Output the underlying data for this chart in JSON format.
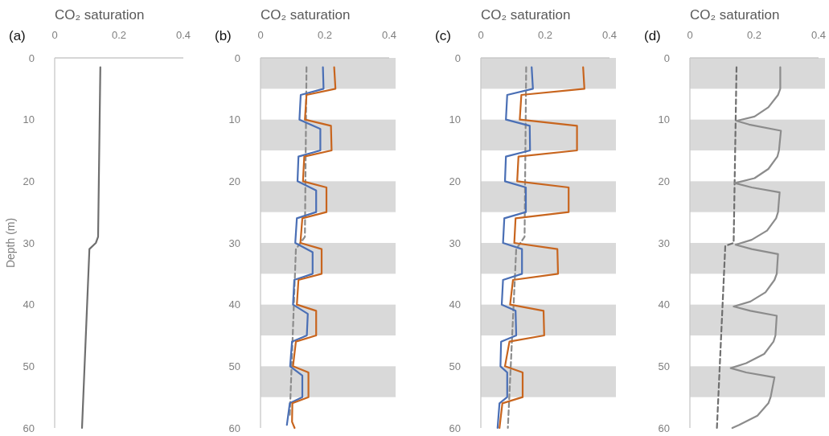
{
  "chart_data": [
    {
      "type": "line",
      "xlabel": "CO₂ saturation",
      "ylabel": "Depth (m)",
      "annotations": [
        "(a)"
      ],
      "xlim": [
        0,
        0.4
      ],
      "xticks": [
        0,
        0.2,
        0.4
      ],
      "ylim": [
        60,
        0
      ],
      "yticks": [
        0,
        10,
        20,
        30,
        40,
        50,
        60
      ],
      "series": [
        {
          "color": "#6f6f6f",
          "x": [
            0.142,
            0.135,
            0.128,
            0.108,
            0.085
          ],
          "values": [
            1.5,
            29,
            30,
            31,
            60
          ]
        }
      ]
    },
    {
      "type": "line",
      "xlabel": "CO₂ saturation",
      "annotations": [
        "(b)"
      ],
      "xlim": [
        0,
        0.4
      ],
      "xticks": [
        0,
        0.2,
        0.4
      ],
      "ylim": [
        60,
        0
      ],
      "yticks": [
        0,
        10,
        20,
        30,
        40,
        50,
        60
      ],
      "bands": [
        {
          "axis": "y",
          "from": 0,
          "to": 5,
          "color": "#d9d9d9"
        },
        {
          "axis": "y",
          "from": 10,
          "to": 15,
          "color": "#d9d9d9"
        },
        {
          "axis": "y",
          "from": 20,
          "to": 25,
          "color": "#d9d9d9"
        },
        {
          "axis": "y",
          "from": 30,
          "to": 35,
          "color": "#d9d9d9"
        },
        {
          "axis": "y",
          "from": 40,
          "to": 45,
          "color": "#d9d9d9"
        },
        {
          "axis": "y",
          "from": 50,
          "to": 55,
          "color": "#d9d9d9"
        }
      ],
      "series": [
        {
          "color": "#8c8c8c",
          "line_style": "dashed",
          "x": [
            0.143,
            0.138,
            0.11,
            0.091
          ],
          "values": [
            1.5,
            29,
            31,
            58
          ]
        },
        {
          "color": "#4a6fb5",
          "x": [
            0.194,
            0.196,
            0.125,
            0.121,
            0.186,
            0.186,
            0.118,
            0.115,
            0.173,
            0.173,
            0.113,
            0.108,
            0.162,
            0.162,
            0.105,
            0.101,
            0.147,
            0.144,
            0.098,
            0.092,
            0.13,
            0.13,
            0.091,
            0.082
          ],
          "values": [
            1.5,
            5,
            6,
            10,
            11.5,
            15,
            16,
            20,
            21.5,
            25,
            26,
            30,
            31.5,
            35,
            36,
            40,
            41.5,
            45,
            46,
            50,
            51.5,
            55,
            56,
            59.5
          ]
        },
        {
          "color": "#c8651e",
          "x": [
            0.229,
            0.233,
            0.143,
            0.138,
            0.219,
            0.221,
            0.136,
            0.132,
            0.205,
            0.205,
            0.13,
            0.124,
            0.19,
            0.19,
            0.118,
            0.113,
            0.173,
            0.173,
            0.11,
            0.101,
            0.149,
            0.149,
            0.099,
            0.098,
            0.106
          ],
          "values": [
            1.5,
            5,
            6,
            10,
            11,
            15,
            16,
            20,
            21,
            25,
            26,
            30,
            31,
            35,
            36,
            40,
            41,
            45,
            46,
            50,
            51,
            55,
            56,
            59,
            60
          ]
        }
      ]
    },
    {
      "type": "line",
      "xlabel": "CO₂ saturation",
      "annotations": [
        "(c)"
      ],
      "xlim": [
        0,
        0.4
      ],
      "xticks": [
        0,
        0.2,
        0.4
      ],
      "ylim": [
        60,
        0
      ],
      "yticks": [
        0,
        10,
        20,
        30,
        40,
        50,
        60
      ],
      "bands": [
        {
          "axis": "y",
          "from": 0,
          "to": 5,
          "color": "#d9d9d9"
        },
        {
          "axis": "y",
          "from": 10,
          "to": 15,
          "color": "#d9d9d9"
        },
        {
          "axis": "y",
          "from": 20,
          "to": 25,
          "color": "#d9d9d9"
        },
        {
          "axis": "y",
          "from": 30,
          "to": 35,
          "color": "#d9d9d9"
        },
        {
          "axis": "y",
          "from": 40,
          "to": 45,
          "color": "#d9d9d9"
        },
        {
          "axis": "y",
          "from": 50,
          "to": 55,
          "color": "#d9d9d9"
        }
      ],
      "series": [
        {
          "color": "#8c8c8c",
          "line_style": "dashed",
          "x": [
            0.141,
            0.136,
            0.11,
            0.084
          ],
          "values": [
            1.5,
            29,
            31,
            60
          ]
        },
        {
          "color": "#4a6fb5",
          "x": [
            0.158,
            0.162,
            0.082,
            0.078,
            0.152,
            0.153,
            0.078,
            0.075,
            0.14,
            0.14,
            0.073,
            0.069,
            0.128,
            0.128,
            0.069,
            0.065,
            0.108,
            0.11,
            0.063,
            0.061,
            0.082,
            0.082,
            0.058,
            0.052
          ],
          "values": [
            1.5,
            5,
            6,
            10,
            11,
            15,
            16,
            20,
            21,
            25,
            26,
            30,
            31,
            35,
            36,
            40,
            41,
            45,
            46,
            50,
            51,
            55,
            56,
            60
          ]
        },
        {
          "color": "#c8651e",
          "x": [
            0.318,
            0.322,
            0.126,
            0.121,
            0.299,
            0.299,
            0.117,
            0.113,
            0.273,
            0.273,
            0.108,
            0.104,
            0.238,
            0.24,
            0.1,
            0.091,
            0.195,
            0.197,
            0.089,
            0.075,
            0.13,
            0.13,
            0.067,
            0.058
          ],
          "values": [
            1.5,
            5,
            6,
            10,
            11,
            15,
            16,
            20,
            21,
            25,
            26,
            30,
            31,
            35,
            36,
            40,
            41,
            45,
            46,
            50,
            51,
            55,
            56,
            60
          ]
        }
      ]
    },
    {
      "type": "line",
      "xlabel": "CO₂ saturation",
      "annotations": [
        "(d)"
      ],
      "xlim": [
        0,
        0.4
      ],
      "xticks": [
        0,
        0.2,
        0.4
      ],
      "ylim": [
        60,
        0
      ],
      "yticks": [
        0,
        10,
        20,
        30,
        40,
        50,
        60
      ],
      "bands": [
        {
          "axis": "y",
          "from": 0,
          "to": 5,
          "color": "#d9d9d9"
        },
        {
          "axis": "y",
          "from": 10,
          "to": 15,
          "color": "#d9d9d9"
        },
        {
          "axis": "y",
          "from": 20,
          "to": 25,
          "color": "#d9d9d9"
        },
        {
          "axis": "y",
          "from": 30,
          "to": 35,
          "color": "#d9d9d9"
        },
        {
          "axis": "y",
          "from": 40,
          "to": 45,
          "color": "#d9d9d9"
        },
        {
          "axis": "y",
          "from": 50,
          "to": 55,
          "color": "#d9d9d9"
        }
      ],
      "series": [
        {
          "color": "#6f6f6f",
          "line_style": "dashed",
          "x": [
            0.145,
            0.136,
            0.11,
            0.084
          ],
          "values": [
            1.5,
            30,
            30.5,
            60
          ]
        },
        {
          "color": "#8c8c8c",
          "x": [
            0.281,
            0.281,
            0.274,
            0.244,
            0.201,
            0.145,
            0.184,
            0.283,
            0.277,
            0.272,
            0.244,
            0.201,
            0.14,
            0.192,
            0.279,
            0.274,
            0.268,
            0.24,
            0.192,
            0.142,
            0.192,
            0.274,
            0.27,
            0.263,
            0.235,
            0.188,
            0.136,
            0.188,
            0.27,
            0.266,
            0.26,
            0.231,
            0.175,
            0.127,
            0.175,
            0.263,
            0.251,
            0.244,
            0.21,
            0.153,
            0.132
          ],
          "values": [
            1.5,
            5,
            6,
            8,
            9.5,
            10.2,
            10.8,
            11.8,
            15,
            16,
            18,
            19.5,
            20.3,
            21,
            21.8,
            25,
            26,
            28,
            29.5,
            30.3,
            31,
            31.8,
            35,
            36,
            38,
            39.5,
            40.3,
            41,
            41.8,
            45,
            46,
            48,
            49.5,
            50.3,
            51,
            51.8,
            55,
            56,
            58,
            59.5,
            60
          ]
        }
      ]
    }
  ]
}
